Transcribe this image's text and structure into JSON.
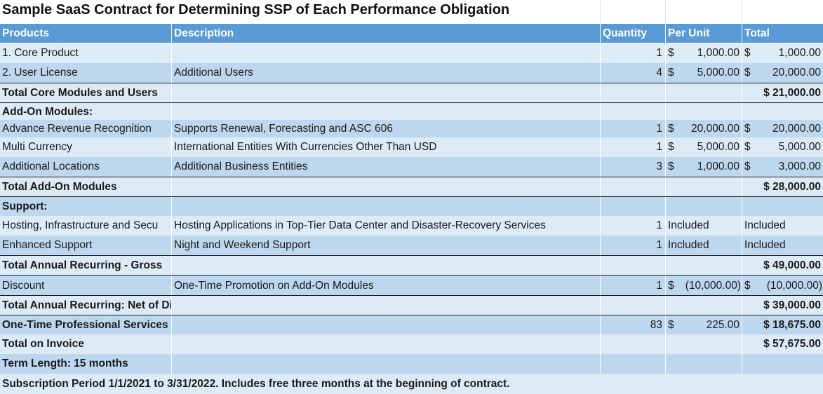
{
  "title": "Sample SaaS Contract for Determining SSP of Each Performance Obligation",
  "columns": [
    "Products",
    "Description",
    "Quantity",
    "Per Unit",
    "Total"
  ],
  "rows": [
    {
      "product": "1. Core Product",
      "description": "",
      "quantity": "1",
      "unit_sym": "$",
      "unit_amt": "1,000.00",
      "total_sym": "$",
      "total_amt": "1,000.00"
    },
    {
      "product": "2. User License",
      "description": "Additional Users",
      "quantity": "4",
      "unit_sym": "$",
      "unit_amt": "5,000.00",
      "total_sym": "$",
      "total_amt": "20,000.00"
    },
    {
      "product": "Total Core Modules and Users",
      "total": "$ 21,000.00"
    },
    {
      "product": "Add-On Modules:"
    },
    {
      "product": "Advance Revenue Recognition",
      "description": "Supports Renewal, Forecasting and ASC 606",
      "quantity": "1",
      "unit_sym": "$",
      "unit_amt": "20,000.00",
      "total_sym": "$",
      "total_amt": "20,000.00"
    },
    {
      "product": "Multi Currency",
      "description": "International Entities With Currencies Other Than USD",
      "quantity": "1",
      "unit_sym": "$",
      "unit_amt": "5,000.00",
      "total_sym": "$",
      "total_amt": "5,000.00"
    },
    {
      "product": "Additional Locations",
      "description": "Additional Business Entities",
      "quantity": "3",
      "unit_sym": "$",
      "unit_amt": "1,000.00",
      "total_sym": "$",
      "total_amt": "3,000.00"
    },
    {
      "product": "Total Add-On Modules",
      "total": "$ 28,000.00"
    },
    {
      "product": "Support:"
    },
    {
      "product": "Hosting, Infrastructure and Secu",
      "description": "Hosting Applications in Top-Tier Data Center and Disaster-Recovery Services",
      "quantity": "1",
      "unit_text": "Included",
      "total_text": "Included"
    },
    {
      "product": "Enhanced Support",
      "description": "Night and Weekend Support",
      "quantity": "1",
      "unit_text": "Included",
      "total_text": "Included"
    },
    {
      "product": "Total Annual Recurring - Gross",
      "total": "$ 49,000.00"
    },
    {
      "product": "Discount",
      "description": "One-Time Promotion on Add-On Modules",
      "quantity": "1",
      "unit_sym": "$",
      "unit_amt": "(10,000.00)",
      "total_sym": "$",
      "total_amt": "(10,000.00)"
    },
    {
      "product": "Total Annual Recurring: Net of Discount",
      "total": "$ 39,000.00"
    },
    {
      "product": "One-Time Professional Services",
      "quantity": "83",
      "unit_sym": "$",
      "unit_amt": "225.00",
      "total": "$ 18,675.00"
    },
    {
      "product": "Total on Invoice",
      "total": "$ 57,675.00"
    },
    {
      "product": "Term Length: 15 months"
    },
    {
      "product": "Subscription Period 1/1/2021 to 3/31/2022. Includes free three months at the beginning of contract."
    }
  ]
}
